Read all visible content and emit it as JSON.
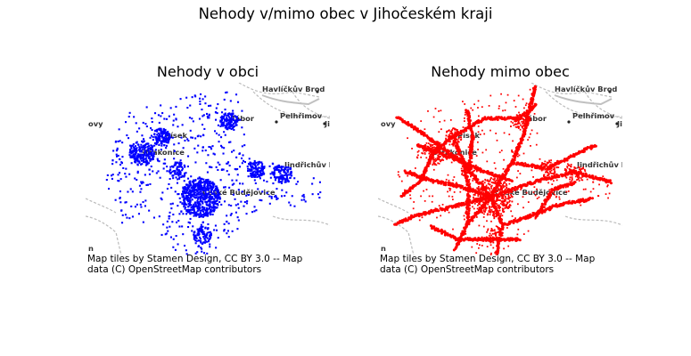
{
  "figure": {
    "title": "Nehody v/mimo obec v Jihočeském kraji"
  },
  "attribution": {
    "line1": "Map tiles by Stamen Design, CC BY 3.0 -- Map",
    "line2": "data (C) OpenStreetMap contributors"
  },
  "basemap": {
    "towns": [
      {
        "id": "havlickuv-brod",
        "label": "Havlíčkův Brod",
        "has_dot": true
      },
      {
        "id": "pelhrimov",
        "label": "Pelhřimov",
        "has_dot": true
      },
      {
        "id": "jihlava",
        "label": "Jih",
        "has_dot": true
      },
      {
        "id": "jindrichuv-hradec",
        "label": "Jindřichův Hradec",
        "has_dot": false
      },
      {
        "id": "ceske-budejovice",
        "label": "České Budějovice",
        "has_dot": false
      },
      {
        "id": "pisek",
        "label": "Písek",
        "has_dot": false
      },
      {
        "id": "strakonice",
        "label": "Strakonice",
        "has_dot": false
      },
      {
        "id": "tabor",
        "label": "Tábor",
        "has_dot": false
      },
      {
        "id": "pribram",
        "label": "ovy",
        "has_dot": false
      },
      {
        "id": "linz",
        "label": "n",
        "has_dot": false
      }
    ]
  },
  "panels": [
    {
      "id": "v-obci",
      "title": "Nehody v obci",
      "color": "#0000ff",
      "style": "points",
      "n_points": 1900
    },
    {
      "id": "mimo-obec",
      "title": "Nehody mimo obec",
      "color": "#ff0000",
      "style": "roads",
      "n_points": 3000
    }
  ]
}
